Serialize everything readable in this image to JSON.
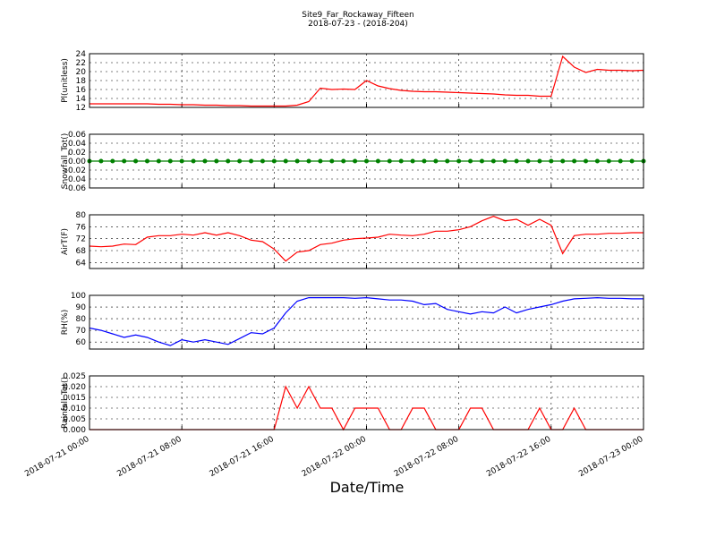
{
  "title": "Site9_Far_Rockaway_Fifteen",
  "subtitle": "2018-07-23 - (2018-204)",
  "xlabel": "Date/Time",
  "chart_data": [
    {
      "type": "line",
      "ylabel": "Pl(unitless)",
      "ylim": [
        12,
        24
      ],
      "yticks": [
        12,
        14,
        16,
        18,
        20,
        22,
        24
      ],
      "grid": true,
      "xlim": [
        "2018-07-21 00:00",
        "2018-07-23 00:00"
      ],
      "xticks": [
        "2018-07-21 00:00",
        "2018-07-21 08:00",
        "2018-07-21 16:00",
        "2018-07-22 00:00",
        "2018-07-22 08:00",
        "2018-07-22 16:00",
        "2018-07-23 00:00"
      ],
      "x": [
        "2018-07-21 00:00",
        "2018-07-21 01:00",
        "2018-07-21 02:00",
        "2018-07-21 03:00",
        "2018-07-21 04:00",
        "2018-07-21 05:00",
        "2018-07-21 06:00",
        "2018-07-21 07:00",
        "2018-07-21 08:00",
        "2018-07-21 09:00",
        "2018-07-21 10:00",
        "2018-07-21 11:00",
        "2018-07-21 12:00",
        "2018-07-21 13:00",
        "2018-07-21 14:00",
        "2018-07-21 15:00",
        "2018-07-21 16:00",
        "2018-07-21 17:00",
        "2018-07-21 18:00",
        "2018-07-21 19:00",
        "2018-07-21 20:00",
        "2018-07-21 21:00",
        "2018-07-21 22:00",
        "2018-07-21 23:00",
        "2018-07-22 00:00",
        "2018-07-22 01:00",
        "2018-07-22 02:00",
        "2018-07-22 03:00",
        "2018-07-22 04:00",
        "2018-07-22 05:00",
        "2018-07-22 06:00",
        "2018-07-22 07:00",
        "2018-07-22 08:00",
        "2018-07-22 09:00",
        "2018-07-22 10:00",
        "2018-07-22 11:00",
        "2018-07-22 12:00",
        "2018-07-22 13:00",
        "2018-07-22 14:00",
        "2018-07-22 15:00",
        "2018-07-22 16:00",
        "2018-07-22 17:00",
        "2018-07-22 18:00",
        "2018-07-22 19:00",
        "2018-07-22 20:00",
        "2018-07-22 21:00",
        "2018-07-22 22:00",
        "2018-07-22 23:00",
        "2018-07-23 00:00"
      ],
      "series": [
        {
          "color": "#ff0000",
          "values": [
            12.8,
            12.8,
            12.8,
            12.8,
            12.8,
            12.8,
            12.7,
            12.7,
            12.6,
            12.6,
            12.5,
            12.5,
            12.4,
            12.4,
            12.3,
            12.3,
            12.3,
            12.3,
            12.5,
            13.3,
            16.3,
            16.0,
            16.1,
            16.0,
            18.0,
            16.8,
            16.2,
            15.8,
            15.6,
            15.5,
            15.5,
            15.4,
            15.3,
            15.2,
            15.1,
            15.0,
            14.8,
            14.7,
            14.7,
            14.5,
            14.5,
            23.4,
            21.0,
            19.8,
            20.5,
            20.3,
            20.3,
            20.2,
            20.3
          ]
        }
      ]
    },
    {
      "type": "line",
      "ylabel": "Snowfall_Tot()",
      "ylim": [
        -0.06,
        0.06
      ],
      "yticks": [
        -0.06,
        -0.04,
        -0.02,
        {
          "value": 0,
          "label": "0.00"
        },
        0.02,
        0.04,
        0.06
      ],
      "grid": true,
      "marker": true,
      "xlim": [
        "2018-07-21 00:00",
        "2018-07-23 00:00"
      ],
      "xticks": [
        "2018-07-21 00:00",
        "2018-07-21 08:00",
        "2018-07-21 16:00",
        "2018-07-22 00:00",
        "2018-07-22 08:00",
        "2018-07-22 16:00",
        "2018-07-23 00:00"
      ],
      "x": [
        "2018-07-21 00:00",
        "2018-07-21 01:00",
        "2018-07-21 02:00",
        "2018-07-21 03:00",
        "2018-07-21 04:00",
        "2018-07-21 05:00",
        "2018-07-21 06:00",
        "2018-07-21 07:00",
        "2018-07-21 08:00",
        "2018-07-21 09:00",
        "2018-07-21 10:00",
        "2018-07-21 11:00",
        "2018-07-21 12:00",
        "2018-07-21 13:00",
        "2018-07-21 14:00",
        "2018-07-21 15:00",
        "2018-07-21 16:00",
        "2018-07-21 17:00",
        "2018-07-21 18:00",
        "2018-07-21 19:00",
        "2018-07-21 20:00",
        "2018-07-21 21:00",
        "2018-07-21 22:00",
        "2018-07-21 23:00",
        "2018-07-22 00:00",
        "2018-07-22 01:00",
        "2018-07-22 02:00",
        "2018-07-22 03:00",
        "2018-07-22 04:00",
        "2018-07-22 05:00",
        "2018-07-22 06:00",
        "2018-07-22 07:00",
        "2018-07-22 08:00",
        "2018-07-22 09:00",
        "2018-07-22 10:00",
        "2018-07-22 11:00",
        "2018-07-22 12:00",
        "2018-07-22 13:00",
        "2018-07-22 14:00",
        "2018-07-22 15:00",
        "2018-07-22 16:00",
        "2018-07-22 17:00",
        "2018-07-22 18:00",
        "2018-07-22 19:00",
        "2018-07-22 20:00",
        "2018-07-22 21:00",
        "2018-07-22 22:00",
        "2018-07-22 23:00",
        "2018-07-23 00:00"
      ],
      "series": [
        {
          "color": "#008000",
          "values": [
            0,
            0,
            0,
            0,
            0,
            0,
            0,
            0,
            0,
            0,
            0,
            0,
            0,
            0,
            0,
            0,
            0,
            0,
            0,
            0,
            0,
            0,
            0,
            0,
            0,
            0,
            0,
            0,
            0,
            0,
            0,
            0,
            0,
            0,
            0,
            0,
            0,
            0,
            0,
            0,
            0,
            0,
            0,
            0,
            0,
            0,
            0,
            0,
            0
          ]
        }
      ]
    },
    {
      "type": "line",
      "ylabel": "AirT(F)",
      "ylim": [
        62,
        80
      ],
      "yticks": [
        64,
        68,
        72,
        76,
        80
      ],
      "grid": true,
      "xlim": [
        "2018-07-21 00:00",
        "2018-07-23 00:00"
      ],
      "xticks": [
        "2018-07-21 00:00",
        "2018-07-21 08:00",
        "2018-07-21 16:00",
        "2018-07-22 00:00",
        "2018-07-22 08:00",
        "2018-07-22 16:00",
        "2018-07-23 00:00"
      ],
      "x": [
        "2018-07-21 00:00",
        "2018-07-21 01:00",
        "2018-07-21 02:00",
        "2018-07-21 03:00",
        "2018-07-21 04:00",
        "2018-07-21 05:00",
        "2018-07-21 06:00",
        "2018-07-21 07:00",
        "2018-07-21 08:00",
        "2018-07-21 09:00",
        "2018-07-21 10:00",
        "2018-07-21 11:00",
        "2018-07-21 12:00",
        "2018-07-21 13:00",
        "2018-07-21 14:00",
        "2018-07-21 15:00",
        "2018-07-21 16:00",
        "2018-07-21 17:00",
        "2018-07-21 18:00",
        "2018-07-21 19:00",
        "2018-07-21 20:00",
        "2018-07-21 21:00",
        "2018-07-21 22:00",
        "2018-07-21 23:00",
        "2018-07-22 00:00",
        "2018-07-22 01:00",
        "2018-07-22 02:00",
        "2018-07-22 03:00",
        "2018-07-22 04:00",
        "2018-07-22 05:00",
        "2018-07-22 06:00",
        "2018-07-22 07:00",
        "2018-07-22 08:00",
        "2018-07-22 09:00",
        "2018-07-22 10:00",
        "2018-07-22 11:00",
        "2018-07-22 12:00",
        "2018-07-22 13:00",
        "2018-07-22 14:00",
        "2018-07-22 15:00",
        "2018-07-22 16:00",
        "2018-07-22 17:00",
        "2018-07-22 18:00",
        "2018-07-22 19:00",
        "2018-07-22 20:00",
        "2018-07-22 21:00",
        "2018-07-22 22:00",
        "2018-07-22 23:00",
        "2018-07-23 00:00"
      ],
      "series": [
        {
          "color": "#ff0000",
          "values": [
            69.5,
            69.3,
            69.5,
            70.2,
            70,
            72.5,
            73,
            73,
            73.5,
            73.2,
            74,
            73.2,
            74,
            73,
            71.5,
            71,
            68.5,
            64.5,
            67.5,
            68,
            70,
            70.5,
            71.5,
            72,
            72.2,
            72.5,
            73.5,
            73.2,
            73,
            73.5,
            74.5,
            74.5,
            75,
            76,
            78,
            79.5,
            78,
            78.5,
            76.5,
            78.5,
            76.5,
            67,
            73,
            73.5,
            73.5,
            73.8,
            73.8,
            74,
            74
          ]
        }
      ]
    },
    {
      "type": "line",
      "ylabel": "RH(%)",
      "ylim": [
        54,
        100
      ],
      "yticks": [
        60,
        70,
        80,
        90,
        100
      ],
      "grid": true,
      "xlim": [
        "2018-07-21 00:00",
        "2018-07-23 00:00"
      ],
      "xticks": [
        "2018-07-21 00:00",
        "2018-07-21 08:00",
        "2018-07-21 16:00",
        "2018-07-22 00:00",
        "2018-07-22 08:00",
        "2018-07-22 16:00",
        "2018-07-23 00:00"
      ],
      "x": [
        "2018-07-21 00:00",
        "2018-07-21 01:00",
        "2018-07-21 02:00",
        "2018-07-21 03:00",
        "2018-07-21 04:00",
        "2018-07-21 05:00",
        "2018-07-21 06:00",
        "2018-07-21 07:00",
        "2018-07-21 08:00",
        "2018-07-21 09:00",
        "2018-07-21 10:00",
        "2018-07-21 11:00",
        "2018-07-21 12:00",
        "2018-07-21 13:00",
        "2018-07-21 14:00",
        "2018-07-21 15:00",
        "2018-07-21 16:00",
        "2018-07-21 17:00",
        "2018-07-21 18:00",
        "2018-07-21 19:00",
        "2018-07-21 20:00",
        "2018-07-21 21:00",
        "2018-07-21 22:00",
        "2018-07-21 23:00",
        "2018-07-22 00:00",
        "2018-07-22 01:00",
        "2018-07-22 02:00",
        "2018-07-22 03:00",
        "2018-07-22 04:00",
        "2018-07-22 05:00",
        "2018-07-22 06:00",
        "2018-07-22 07:00",
        "2018-07-22 08:00",
        "2018-07-22 09:00",
        "2018-07-22 10:00",
        "2018-07-22 11:00",
        "2018-07-22 12:00",
        "2018-07-22 13:00",
        "2018-07-22 14:00",
        "2018-07-22 15:00",
        "2018-07-22 16:00",
        "2018-07-22 17:00",
        "2018-07-22 18:00",
        "2018-07-22 19:00",
        "2018-07-22 20:00",
        "2018-07-22 21:00",
        "2018-07-22 22:00",
        "2018-07-22 23:00",
        "2018-07-23 00:00"
      ],
      "series": [
        {
          "color": "#0000ff",
          "values": [
            72,
            70,
            67,
            64,
            66,
            64,
            60,
            57,
            62,
            60,
            62,
            60,
            58,
            63,
            68,
            67,
            72,
            85,
            95,
            98,
            98,
            98,
            98,
            97.5,
            98,
            97,
            96,
            96,
            95,
            92,
            93,
            88,
            86,
            84,
            86,
            85,
            90,
            85,
            88,
            90,
            92,
            95,
            97,
            97.5,
            98,
            97.5,
            97.5,
            97,
            97
          ]
        }
      ]
    },
    {
      "type": "line",
      "ylabel": "Rainfall_Tot()",
      "ylim": [
        0,
        0.025
      ],
      "yticks": [
        {
          "value": 0,
          "label": "0.000"
        },
        0.005,
        {
          "value": 0.01,
          "label": "0.010"
        },
        0.015,
        {
          "value": 0.02,
          "label": "0.020"
        },
        0.025
      ],
      "grid": true,
      "show_xtick_labels": true,
      "xlim": [
        "2018-07-21 00:00",
        "2018-07-23 00:00"
      ],
      "xticks": [
        "2018-07-21 00:00",
        "2018-07-21 08:00",
        "2018-07-21 16:00",
        "2018-07-22 00:00",
        "2018-07-22 08:00",
        "2018-07-22 16:00",
        "2018-07-23 00:00"
      ],
      "x": [
        "2018-07-21 00:00",
        "2018-07-21 01:00",
        "2018-07-21 02:00",
        "2018-07-21 03:00",
        "2018-07-21 04:00",
        "2018-07-21 05:00",
        "2018-07-21 06:00",
        "2018-07-21 07:00",
        "2018-07-21 08:00",
        "2018-07-21 09:00",
        "2018-07-21 10:00",
        "2018-07-21 11:00",
        "2018-07-21 12:00",
        "2018-07-21 13:00",
        "2018-07-21 14:00",
        "2018-07-21 15:00",
        "2018-07-21 16:00",
        "2018-07-21 17:00",
        "2018-07-21 18:00",
        "2018-07-21 19:00",
        "2018-07-21 20:00",
        "2018-07-21 21:00",
        "2018-07-21 22:00",
        "2018-07-21 23:00",
        "2018-07-22 00:00",
        "2018-07-22 01:00",
        "2018-07-22 02:00",
        "2018-07-22 03:00",
        "2018-07-22 04:00",
        "2018-07-22 05:00",
        "2018-07-22 06:00",
        "2018-07-22 07:00",
        "2018-07-22 08:00",
        "2018-07-22 09:00",
        "2018-07-22 10:00",
        "2018-07-22 11:00",
        "2018-07-22 12:00",
        "2018-07-22 13:00",
        "2018-07-22 14:00",
        "2018-07-22 15:00",
        "2018-07-22 16:00",
        "2018-07-22 17:00",
        "2018-07-22 18:00",
        "2018-07-22 19:00",
        "2018-07-22 20:00",
        "2018-07-22 21:00",
        "2018-07-22 22:00",
        "2018-07-22 23:00",
        "2018-07-23 00:00"
      ],
      "series": [
        {
          "color": "#ff0000",
          "values": [
            0,
            0,
            0,
            0,
            0,
            0,
            0,
            0,
            0,
            0,
            0,
            0,
            0,
            0,
            0,
            0,
            0,
            0.02,
            0.01,
            0.02,
            0.01,
            0.01,
            0,
            0.01,
            0.01,
            0.01,
            0,
            0,
            0.01,
            0.01,
            0,
            0,
            0,
            0.01,
            0.01,
            0,
            0,
            0,
            0,
            0.01,
            0,
            0,
            0.01,
            0,
            0,
            0,
            0,
            0,
            0
          ]
        }
      ]
    }
  ]
}
